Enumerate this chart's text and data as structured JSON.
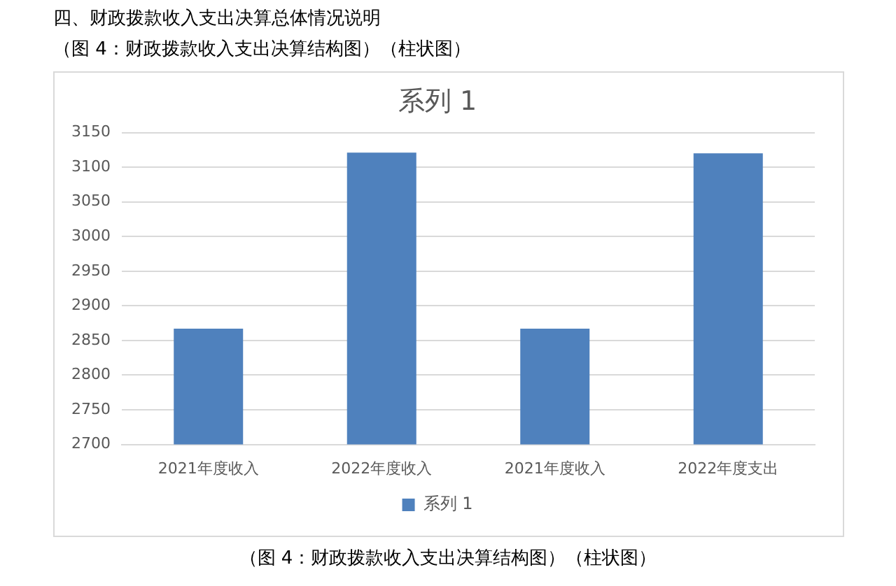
{
  "chart_data": {
    "type": "bar",
    "title": "系列 1",
    "subtitle": "（图 4：财政拨款收入支出决算结构图）（柱状图）",
    "annotations": [
      "四、财政拨款收入支出决算总体情况说明",
      "（图 4：财政拨款收入支出决算结构图）（柱状图）"
    ],
    "categories": [
      "2021年度收入",
      "2022年度收入",
      "2021年度收入",
      "2022年度支出"
    ],
    "series": [
      {
        "name": "系列 1",
        "color": "#4f81bd",
        "values": [
          2867,
          3121,
          2867,
          3120
        ]
      }
    ],
    "ylim": [
      2700,
      3150
    ],
    "yticks": [
      2700,
      2750,
      2800,
      2850,
      2900,
      2950,
      3000,
      3050,
      3100,
      3150
    ],
    "grid": "y",
    "legend": "bottom"
  }
}
